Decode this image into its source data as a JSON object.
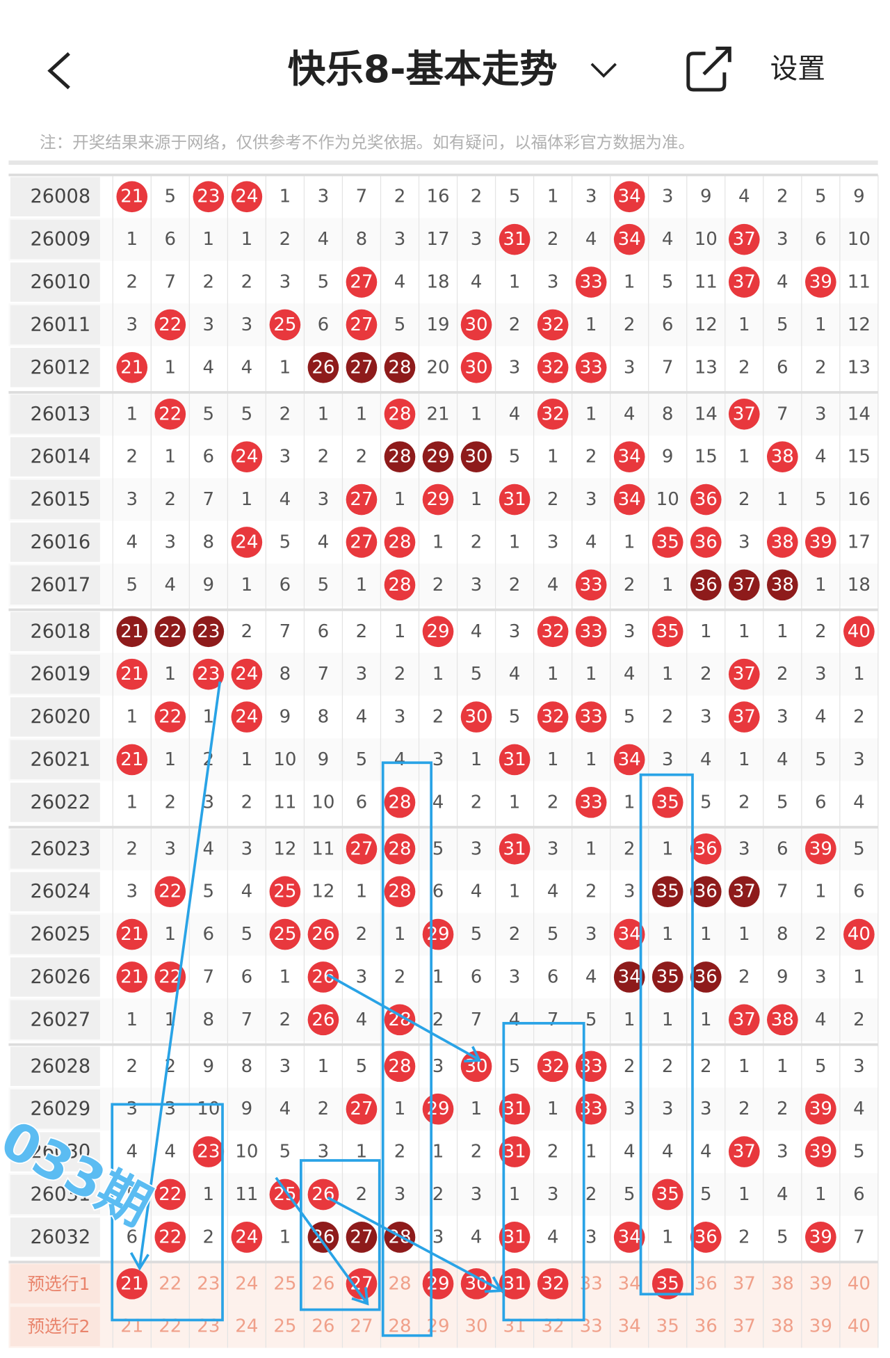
{
  "header": {
    "title": "快乐8-基本走势",
    "settings": "设置"
  },
  "note": "注：开奖结果来源于网络，仅供参考不作为兑奖依据。如有疑问，以福体彩官方数据为准。",
  "table": {
    "rows": [
      {
        "period": "26008",
        "cells": [
          21,
          5,
          23,
          24,
          1,
          3,
          7,
          2,
          16,
          2,
          5,
          1,
          3,
          34,
          3,
          9,
          4,
          2,
          5,
          9
        ],
        "red": [
          0,
          2,
          3,
          13
        ]
      },
      {
        "period": "26009",
        "cells": [
          1,
          6,
          1,
          1,
          2,
          4,
          8,
          3,
          17,
          3,
          31,
          2,
          4,
          34,
          4,
          10,
          37,
          3,
          6,
          10
        ],
        "red": [
          10,
          13,
          16
        ]
      },
      {
        "period": "26010",
        "cells": [
          2,
          7,
          2,
          2,
          3,
          5,
          27,
          4,
          18,
          4,
          1,
          3,
          33,
          1,
          5,
          11,
          37,
          4,
          39,
          11
        ],
        "red": [
          6,
          12,
          16,
          18
        ]
      },
      {
        "period": "26011",
        "cells": [
          3,
          22,
          3,
          3,
          25,
          6,
          27,
          5,
          19,
          30,
          2,
          32,
          1,
          2,
          6,
          12,
          1,
          5,
          1,
          12
        ],
        "red": [
          1,
          4,
          6,
          9,
          11
        ]
      },
      {
        "period": "26012",
        "cells": [
          21,
          1,
          4,
          4,
          1,
          26,
          27,
          28,
          20,
          30,
          3,
          32,
          33,
          3,
          7,
          13,
          2,
          6,
          2,
          13
        ],
        "red": [
          0,
          9,
          11,
          12
        ],
        "dark": [
          5,
          6,
          7
        ]
      },
      {
        "period": "26013",
        "cells": [
          1,
          22,
          5,
          5,
          2,
          1,
          1,
          28,
          21,
          1,
          4,
          32,
          1,
          4,
          8,
          14,
          37,
          7,
          3,
          14
        ],
        "red": [
          1,
          7,
          11,
          16
        ]
      },
      {
        "period": "26014",
        "cells": [
          2,
          1,
          6,
          24,
          3,
          2,
          2,
          28,
          29,
          30,
          5,
          1,
          2,
          34,
          9,
          15,
          1,
          38,
          4,
          15
        ],
        "red": [
          3,
          13,
          17
        ],
        "dark": [
          7,
          8,
          9
        ]
      },
      {
        "period": "26015",
        "cells": [
          3,
          2,
          7,
          1,
          4,
          3,
          27,
          1,
          29,
          1,
          31,
          2,
          3,
          34,
          10,
          36,
          2,
          1,
          5,
          16
        ],
        "red": [
          6,
          8,
          10,
          13,
          15
        ]
      },
      {
        "period": "26016",
        "cells": [
          4,
          3,
          8,
          24,
          5,
          4,
          27,
          28,
          1,
          2,
          1,
          3,
          4,
          1,
          35,
          36,
          3,
          38,
          39,
          17
        ],
        "red": [
          3,
          6,
          7,
          14,
          15,
          17,
          18
        ]
      },
      {
        "period": "26017",
        "cells": [
          5,
          4,
          9,
          1,
          6,
          5,
          1,
          28,
          2,
          3,
          2,
          4,
          33,
          2,
          1,
          36,
          37,
          38,
          1,
          18
        ],
        "red": [
          7,
          12
        ],
        "dark": [
          15,
          16,
          17
        ]
      },
      {
        "period": "26018",
        "cells": [
          21,
          22,
          23,
          2,
          7,
          6,
          2,
          1,
          29,
          4,
          3,
          32,
          33,
          3,
          35,
          1,
          1,
          1,
          2,
          40
        ],
        "red": [
          8,
          11,
          12,
          14,
          19
        ],
        "dark": [
          0,
          1,
          2
        ]
      },
      {
        "period": "26019",
        "cells": [
          21,
          1,
          23,
          24,
          8,
          7,
          3,
          2,
          1,
          5,
          4,
          1,
          1,
          4,
          1,
          2,
          37,
          2,
          3,
          1
        ],
        "red": [
          0,
          2,
          3,
          16
        ]
      },
      {
        "period": "26020",
        "cells": [
          1,
          22,
          1,
          24,
          9,
          8,
          4,
          3,
          2,
          30,
          5,
          32,
          33,
          5,
          2,
          3,
          37,
          3,
          4,
          2
        ],
        "red": [
          1,
          3,
          9,
          11,
          12,
          16
        ]
      },
      {
        "period": "26021",
        "cells": [
          21,
          1,
          2,
          1,
          10,
          9,
          5,
          4,
          3,
          1,
          31,
          1,
          1,
          34,
          3,
          4,
          1,
          4,
          5,
          3
        ],
        "red": [
          0,
          10,
          13
        ]
      },
      {
        "period": "26022",
        "cells": [
          1,
          2,
          3,
          2,
          11,
          10,
          6,
          28,
          4,
          2,
          1,
          2,
          33,
          1,
          35,
          5,
          2,
          5,
          6,
          4
        ],
        "red": [
          7,
          12,
          14
        ]
      },
      {
        "period": "26023",
        "cells": [
          2,
          3,
          4,
          3,
          12,
          11,
          27,
          28,
          5,
          3,
          31,
          3,
          1,
          2,
          1,
          36,
          3,
          6,
          39,
          5
        ],
        "red": [
          6,
          7,
          10,
          15,
          18
        ]
      },
      {
        "period": "26024",
        "cells": [
          3,
          22,
          5,
          4,
          25,
          12,
          1,
          28,
          6,
          4,
          1,
          4,
          2,
          3,
          35,
          36,
          37,
          7,
          1,
          6
        ],
        "red": [
          1,
          4,
          7
        ],
        "dark": [
          14,
          15,
          16
        ]
      },
      {
        "period": "26025",
        "cells": [
          21,
          1,
          6,
          5,
          25,
          26,
          2,
          1,
          29,
          5,
          2,
          5,
          3,
          34,
          1,
          1,
          1,
          8,
          2,
          40
        ],
        "red": [
          0,
          4,
          5,
          8,
          13,
          19
        ]
      },
      {
        "period": "26026",
        "cells": [
          21,
          22,
          7,
          6,
          1,
          26,
          3,
          2,
          1,
          6,
          3,
          6,
          4,
          34,
          35,
          36,
          2,
          9,
          3,
          1
        ],
        "red": [
          0,
          1,
          5
        ],
        "dark": [
          13,
          14,
          15
        ]
      },
      {
        "period": "26027",
        "cells": [
          1,
          1,
          8,
          7,
          2,
          26,
          4,
          28,
          2,
          7,
          4,
          7,
          5,
          1,
          1,
          1,
          37,
          38,
          4,
          2
        ],
        "red": [
          5,
          7,
          16,
          17
        ]
      },
      {
        "period": "26028",
        "cells": [
          2,
          2,
          9,
          8,
          3,
          1,
          5,
          28,
          3,
          30,
          5,
          32,
          33,
          2,
          2,
          2,
          1,
          1,
          5,
          3
        ],
        "red": [
          7,
          9,
          11,
          12
        ]
      },
      {
        "period": "26029",
        "cells": [
          3,
          3,
          10,
          9,
          4,
          2,
          27,
          1,
          29,
          1,
          31,
          1,
          33,
          3,
          3,
          3,
          2,
          2,
          39,
          4
        ],
        "red": [
          6,
          8,
          10,
          12,
          18
        ]
      },
      {
        "period": "26030",
        "cells": [
          4,
          4,
          23,
          10,
          5,
          3,
          1,
          2,
          1,
          2,
          31,
          2,
          1,
          4,
          4,
          4,
          37,
          3,
          39,
          5
        ],
        "red": [
          2,
          10,
          16,
          18
        ]
      },
      {
        "period": "26031",
        "cells": [
          5,
          22,
          1,
          11,
          25,
          26,
          2,
          3,
          2,
          3,
          1,
          3,
          2,
          5,
          35,
          5,
          1,
          4,
          1,
          6
        ],
        "red": [
          1,
          4,
          5,
          14
        ]
      },
      {
        "period": "26032",
        "cells": [
          6,
          22,
          2,
          24,
          1,
          26,
          27,
          28,
          3,
          4,
          31,
          4,
          3,
          34,
          1,
          36,
          2,
          5,
          39,
          7
        ],
        "red": [
          1,
          3,
          10,
          13,
          15,
          18
        ],
        "dark": [
          5,
          6,
          7
        ]
      }
    ],
    "preselect": [
      {
        "label": "预选行1",
        "cells": [
          21,
          22,
          23,
          24,
          25,
          26,
          27,
          28,
          29,
          30,
          31,
          32,
          33,
          34,
          35,
          36,
          37,
          38,
          39,
          40
        ],
        "red": [
          0,
          6,
          8,
          9,
          10,
          11,
          14
        ]
      },
      {
        "label": "预选行2",
        "cells": [
          21,
          22,
          23,
          24,
          25,
          26,
          27,
          28,
          29,
          30,
          31,
          32,
          33,
          34,
          35,
          36,
          37,
          38,
          39,
          40
        ]
      }
    ]
  },
  "annotation": "033期"
}
